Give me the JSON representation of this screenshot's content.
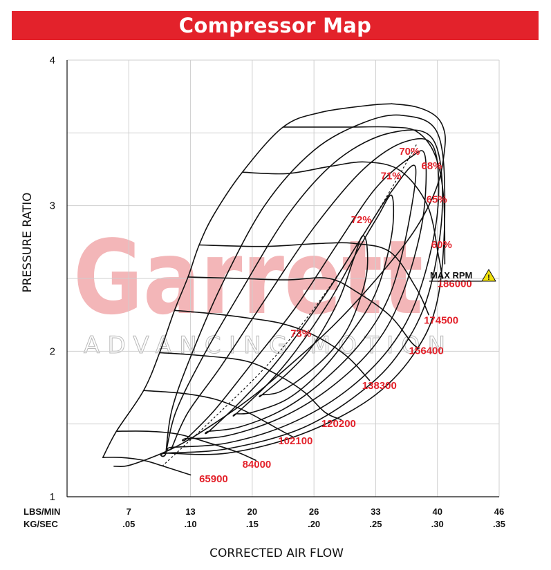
{
  "header": {
    "title": "Compressor Map"
  },
  "watermark": {
    "brand": "Garrett",
    "tagline": "ADVANCING MOTION"
  },
  "chart_data": {
    "type": "line",
    "title": "Compressor Map",
    "xlabel": "CORRECTED AIR FLOW",
    "ylabel": "PRESSURE RATIO",
    "x_unit_labels": [
      "LBS/MIN",
      "KG/SEC"
    ],
    "x_ticks_lbs_min": [
      "7",
      "13",
      "20",
      "26",
      "33",
      "40",
      "46"
    ],
    "x_ticks_kg_sec": [
      ".05",
      ".10",
      ".15",
      ".20",
      ".25",
      ".30",
      ".35"
    ],
    "xlim_kg_sec": [
      0,
      0.35
    ],
    "y_ticks": [
      "1",
      "2",
      "3",
      "4"
    ],
    "ylim": [
      1,
      4
    ],
    "grid": true,
    "surge_line": [
      [
        0.029,
        1.27
      ],
      [
        0.04,
        1.45
      ],
      [
        0.062,
        1.73
      ],
      [
        0.075,
        1.99
      ],
      [
        0.087,
        2.28
      ],
      [
        0.098,
        2.51
      ],
      [
        0.107,
        2.73
      ],
      [
        0.119,
        2.94
      ],
      [
        0.142,
        3.23
      ],
      [
        0.175,
        3.54
      ],
      [
        0.205,
        3.64
      ],
      [
        0.245,
        3.69
      ],
      [
        0.263,
        3.7
      ]
    ],
    "choke_line": [
      [
        0.038,
        1.21
      ],
      [
        0.052,
        1.22
      ],
      [
        0.085,
        1.33
      ],
      [
        0.115,
        1.48
      ],
      [
        0.152,
        1.7
      ],
      [
        0.192,
        1.99
      ],
      [
        0.222,
        2.23
      ],
      [
        0.256,
        2.55
      ],
      [
        0.283,
        2.85
      ],
      [
        0.3,
        3.14
      ],
      [
        0.306,
        3.4
      ],
      [
        0.305,
        3.53
      ],
      [
        0.298,
        3.62
      ],
      [
        0.282,
        3.68
      ],
      [
        0.263,
        3.7
      ]
    ],
    "speed_lines": [
      {
        "label": "65900",
        "points": [
          [
            0.029,
            1.27
          ],
          [
            0.043,
            1.27
          ],
          [
            0.062,
            1.25
          ],
          [
            0.078,
            1.21
          ],
          [
            0.1,
            1.15
          ]
        ]
      },
      {
        "label": "84000",
        "points": [
          [
            0.04,
            1.45
          ],
          [
            0.065,
            1.45
          ],
          [
            0.09,
            1.43
          ],
          [
            0.115,
            1.37
          ],
          [
            0.137,
            1.31
          ],
          [
            0.153,
            1.25
          ]
        ]
      },
      {
        "label": "102100",
        "points": [
          [
            0.062,
            1.73
          ],
          [
            0.094,
            1.71
          ],
          [
            0.12,
            1.67
          ],
          [
            0.144,
            1.59
          ],
          [
            0.168,
            1.48
          ],
          [
            0.183,
            1.41
          ]
        ]
      },
      {
        "label": "120200",
        "points": [
          [
            0.075,
            1.99
          ],
          [
            0.109,
            1.97
          ],
          [
            0.146,
            1.93
          ],
          [
            0.172,
            1.83
          ],
          [
            0.192,
            1.72
          ],
          [
            0.209,
            1.58
          ],
          [
            0.222,
            1.53
          ]
        ]
      },
      {
        "label": "138300",
        "points": [
          [
            0.087,
            2.28
          ],
          [
            0.115,
            2.26
          ],
          [
            0.145,
            2.23
          ],
          [
            0.174,
            2.19
          ],
          [
            0.2,
            2.11
          ],
          [
            0.226,
            1.97
          ],
          [
            0.245,
            1.8
          ]
        ]
      },
      {
        "label": "156400",
        "points": [
          [
            0.098,
            2.51
          ],
          [
            0.14,
            2.5
          ],
          [
            0.178,
            2.49
          ],
          [
            0.212,
            2.5
          ],
          [
            0.236,
            2.4
          ],
          [
            0.262,
            2.24
          ],
          [
            0.279,
            2.06
          ],
          [
            0.285,
            2.02
          ]
        ]
      },
      {
        "label": "174500",
        "points": [
          [
            0.107,
            2.73
          ],
          [
            0.16,
            2.72
          ],
          [
            0.204,
            2.74
          ],
          [
            0.233,
            2.74
          ],
          [
            0.262,
            2.68
          ],
          [
            0.283,
            2.43
          ],
          [
            0.293,
            2.25
          ]
        ]
      },
      {
        "label": "186000",
        "points": [
          [
            0.142,
            3.23
          ],
          [
            0.178,
            3.22
          ],
          [
            0.213,
            3.27
          ],
          [
            0.242,
            3.3
          ],
          [
            0.27,
            3.24
          ],
          [
            0.292,
            3.0
          ],
          [
            0.301,
            2.65
          ],
          [
            0.304,
            2.5
          ]
        ]
      },
      {
        "label": "",
        "points": [
          [
            0.175,
            3.54
          ],
          [
            0.198,
            3.54
          ],
          [
            0.23,
            3.54
          ],
          [
            0.262,
            3.54
          ],
          [
            0.283,
            3.51
          ],
          [
            0.298,
            3.35
          ],
          [
            0.305,
            3.06
          ],
          [
            0.306,
            2.6
          ]
        ]
      }
    ],
    "efficiency_islands": [
      {
        "label": "73%",
        "points": [
          [
            0.158,
            1.7
          ],
          [
            0.18,
            1.86
          ],
          [
            0.2,
            2.05
          ],
          [
            0.22,
            2.35
          ],
          [
            0.232,
            2.63
          ],
          [
            0.239,
            2.79
          ],
          [
            0.243,
            2.72
          ],
          [
            0.242,
            2.5
          ],
          [
            0.23,
            2.2
          ],
          [
            0.214,
            2.0
          ],
          [
            0.192,
            1.83
          ],
          [
            0.172,
            1.72
          ],
          [
            0.158,
            1.7
          ]
        ]
      },
      {
        "label": "72%",
        "points": [
          [
            0.137,
            1.57
          ],
          [
            0.162,
            1.77
          ],
          [
            0.185,
            2.0
          ],
          [
            0.213,
            2.35
          ],
          [
            0.236,
            2.7
          ],
          [
            0.252,
            2.93
          ],
          [
            0.263,
            3.07
          ],
          [
            0.263,
            2.8
          ],
          [
            0.25,
            2.4
          ],
          [
            0.228,
            2.1
          ],
          [
            0.204,
            1.85
          ],
          [
            0.178,
            1.67
          ],
          [
            0.15,
            1.58
          ],
          [
            0.137,
            1.57
          ]
        ]
      },
      {
        "label": "71%",
        "points": [
          [
            0.115,
            1.45
          ],
          [
            0.14,
            1.65
          ],
          [
            0.172,
            1.95
          ],
          [
            0.21,
            2.4
          ],
          [
            0.24,
            2.8
          ],
          [
            0.263,
            3.1
          ],
          [
            0.282,
            3.27
          ],
          [
            0.276,
            2.85
          ],
          [
            0.262,
            2.4
          ],
          [
            0.24,
            2.08
          ],
          [
            0.208,
            1.8
          ],
          [
            0.175,
            1.6
          ],
          [
            0.14,
            1.48
          ],
          [
            0.115,
            1.45
          ]
        ]
      },
      {
        "label": "70%",
        "points": [
          [
            0.097,
            1.4
          ],
          [
            0.12,
            1.6
          ],
          [
            0.15,
            1.92
          ],
          [
            0.185,
            2.3
          ],
          [
            0.22,
            2.75
          ],
          [
            0.25,
            3.12
          ],
          [
            0.278,
            3.33
          ],
          [
            0.29,
            3.34
          ],
          [
            0.288,
            2.9
          ],
          [
            0.272,
            2.4
          ],
          [
            0.25,
            2.05
          ],
          [
            0.215,
            1.76
          ],
          [
            0.175,
            1.55
          ],
          [
            0.13,
            1.42
          ],
          [
            0.097,
            1.4
          ]
        ]
      },
      {
        "label": "68%",
        "points": [
          [
            0.085,
            1.34
          ],
          [
            0.098,
            1.58
          ],
          [
            0.125,
            1.9
          ],
          [
            0.16,
            2.35
          ],
          [
            0.2,
            2.85
          ],
          [
            0.24,
            3.25
          ],
          [
            0.274,
            3.44
          ],
          [
            0.297,
            3.4
          ],
          [
            0.3,
            2.95
          ],
          [
            0.285,
            2.4
          ],
          [
            0.262,
            2.03
          ],
          [
            0.225,
            1.72
          ],
          [
            0.18,
            1.5
          ],
          [
            0.13,
            1.37
          ],
          [
            0.085,
            1.34
          ]
        ]
      },
      {
        "label": "65%",
        "points": [
          [
            0.08,
            1.3
          ],
          [
            0.088,
            1.58
          ],
          [
            0.108,
            1.93
          ],
          [
            0.14,
            2.4
          ],
          [
            0.18,
            2.95
          ],
          [
            0.22,
            3.32
          ],
          [
            0.262,
            3.5
          ],
          [
            0.296,
            3.46
          ],
          [
            0.304,
            3.0
          ],
          [
            0.293,
            2.4
          ],
          [
            0.27,
            2.0
          ],
          [
            0.238,
            1.72
          ],
          [
            0.19,
            1.47
          ],
          [
            0.13,
            1.33
          ],
          [
            0.08,
            1.3
          ]
        ]
      },
      {
        "label": "60%",
        "points": [
          [
            0.08,
            1.3
          ],
          [
            0.085,
            1.6
          ],
          [
            0.1,
            1.96
          ],
          [
            0.125,
            2.45
          ],
          [
            0.16,
            3.0
          ],
          [
            0.2,
            3.38
          ],
          [
            0.24,
            3.57
          ],
          [
            0.272,
            3.62
          ],
          [
            0.3,
            3.5
          ],
          [
            0.306,
            3.0
          ],
          [
            0.3,
            2.35
          ],
          [
            0.28,
            1.97
          ],
          [
            0.245,
            1.67
          ],
          [
            0.19,
            1.43
          ],
          [
            0.13,
            1.3
          ],
          [
            0.08,
            1.3
          ]
        ]
      }
    ],
    "max_efficiency_line": [
      [
        0.077,
        1.21
      ],
      [
        0.12,
        1.55
      ],
      [
        0.165,
        1.93
      ],
      [
        0.205,
        2.35
      ],
      [
        0.24,
        2.8
      ],
      [
        0.265,
        3.15
      ],
      [
        0.283,
        3.42
      ]
    ],
    "annotations": [
      {
        "text": "MAX RPM",
        "icon": "warning-triangle-icon",
        "icon_color": "#f2e20c"
      }
    ],
    "colors": {
      "accent": "#e3222b",
      "lines": "#111111",
      "grid": "#cfcfcf",
      "watermark": "#f3b6b8"
    }
  }
}
